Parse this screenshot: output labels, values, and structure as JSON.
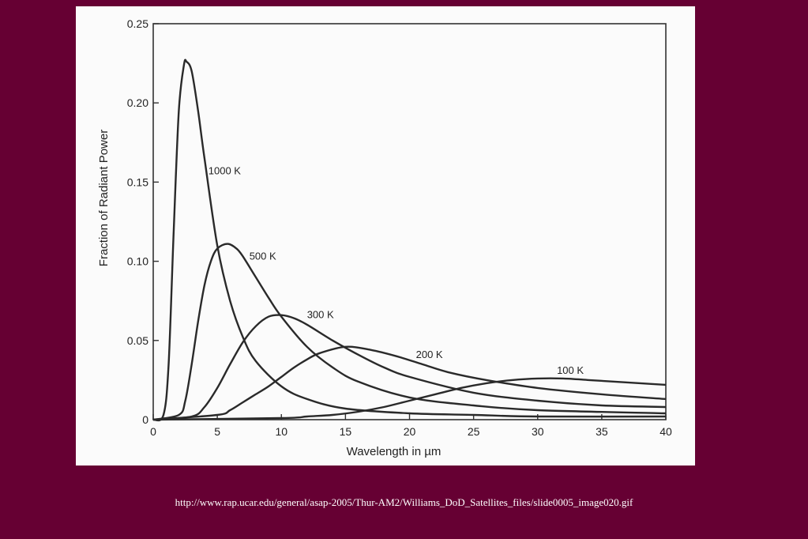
{
  "caption": "http://www.rap.ucar.edu/general/asap-2005/Thur-AM2/Williams_DoD_Satellites_files/slide0005_image020.gif",
  "colors": {
    "background": "#660033",
    "panel": "#fbfbfb",
    "ink": "#2a2a2a",
    "caption": "#ffffff"
  },
  "chart_data": {
    "type": "line",
    "title": "",
    "xlabel": "Wavelength in µm",
    "ylabel": "Fraction of Radiant Power",
    "xlim": [
      0,
      40
    ],
    "ylim": [
      0,
      0.25
    ],
    "xticks": [
      0,
      5,
      10,
      15,
      20,
      25,
      30,
      35,
      40
    ],
    "xtick_labels": [
      "0",
      "5",
      "10",
      "15",
      "20",
      "25",
      "30",
      "35",
      "40"
    ],
    "yticks": [
      0,
      0.05,
      0.1,
      0.15,
      0.2,
      0.25
    ],
    "ytick_labels": [
      "0",
      "0.05",
      "0.10",
      "0.15",
      "0.20",
      "0.25"
    ],
    "grid": false,
    "legend": "none",
    "series": [
      {
        "name": "1000 K",
        "x": [
          0,
          0.8,
          1.2,
          1.6,
          2.0,
          2.4,
          2.6,
          3.0,
          3.5,
          4.0,
          5.0,
          6.0,
          7.0,
          8.0,
          10.0,
          12.0,
          15.0,
          20.0,
          25.0,
          30.0,
          40.0
        ],
        "y": [
          0,
          0.003,
          0.035,
          0.12,
          0.195,
          0.224,
          0.226,
          0.22,
          0.195,
          0.165,
          0.11,
          0.075,
          0.052,
          0.037,
          0.021,
          0.013,
          0.007,
          0.004,
          0.003,
          0.002,
          0.002
        ]
      },
      {
        "name": "500 K",
        "x": [
          0,
          2.0,
          2.5,
          3.0,
          3.5,
          4.0,
          4.5,
          5.0,
          5.8,
          6.5,
          7.0,
          8.0,
          9.0,
          10.0,
          12.0,
          14.0,
          16.0,
          20.0,
          25.0,
          30.0,
          40.0
        ],
        "y": [
          0,
          0.003,
          0.012,
          0.035,
          0.062,
          0.085,
          0.1,
          0.108,
          0.111,
          0.108,
          0.103,
          0.09,
          0.077,
          0.065,
          0.046,
          0.033,
          0.024,
          0.014,
          0.009,
          0.006,
          0.004
        ]
      },
      {
        "name": "300 K",
        "x": [
          0,
          3.0,
          4.0,
          5.0,
          6.0,
          7.0,
          8.0,
          9.0,
          10.0,
          11.0,
          12.0,
          14.0,
          16.0,
          18.0,
          20.0,
          25.0,
          30.0,
          35.0,
          40.0
        ],
        "y": [
          0,
          0.002,
          0.008,
          0.02,
          0.035,
          0.049,
          0.059,
          0.065,
          0.066,
          0.064,
          0.06,
          0.05,
          0.041,
          0.033,
          0.027,
          0.017,
          0.012,
          0.009,
          0.008
        ]
      },
      {
        "name": "200 K",
        "x": [
          0,
          5.0,
          6.0,
          7.0,
          8.0,
          9.0,
          10.0,
          11.0,
          12.0,
          13.0,
          15.0,
          17.0,
          19.0,
          21.0,
          23.0,
          26.0,
          30.0,
          35.0,
          40.0
        ],
        "y": [
          0,
          0.003,
          0.006,
          0.011,
          0.016,
          0.021,
          0.027,
          0.033,
          0.038,
          0.042,
          0.046,
          0.044,
          0.04,
          0.035,
          0.03,
          0.025,
          0.02,
          0.016,
          0.013
        ]
      },
      {
        "name": "100 K",
        "x": [
          0,
          10.0,
          12.0,
          14.0,
          16.0,
          18.0,
          20.0,
          22.0,
          24.0,
          26.0,
          28.0,
          30.0,
          32.0,
          34.0,
          36.0,
          38.0,
          40.0
        ],
        "y": [
          0,
          0.001,
          0.002,
          0.003,
          0.005,
          0.008,
          0.012,
          0.016,
          0.02,
          0.023,
          0.025,
          0.026,
          0.026,
          0.025,
          0.024,
          0.023,
          0.022
        ]
      }
    ]
  }
}
